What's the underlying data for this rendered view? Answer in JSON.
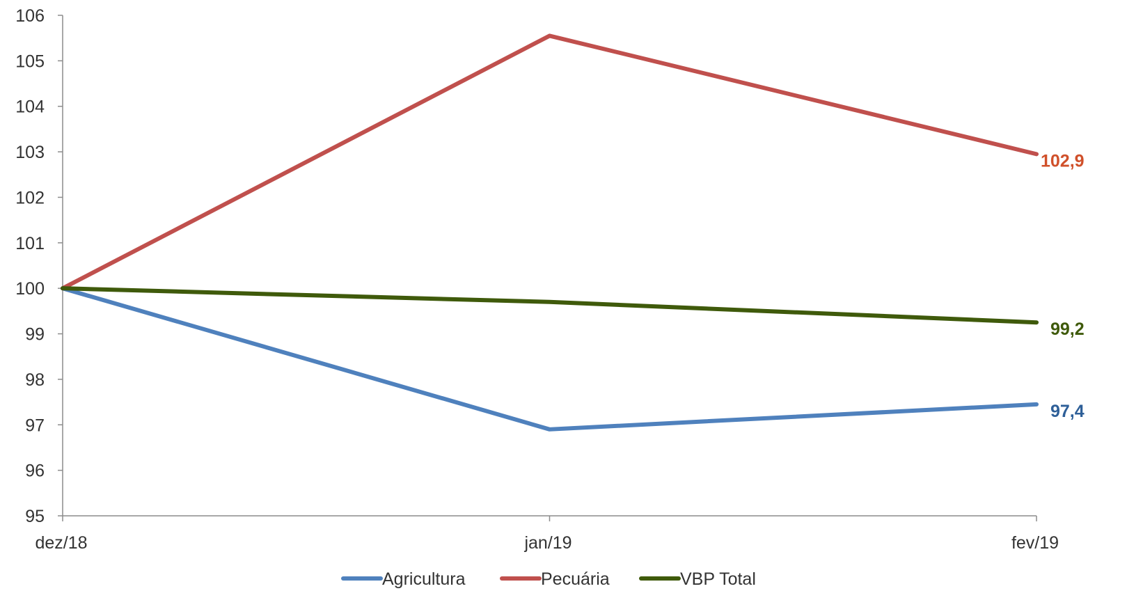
{
  "chart_data": {
    "type": "line",
    "title": "",
    "xlabel": "",
    "ylabel": "",
    "categories": [
      "dez/18",
      "jan/19",
      "fev/19"
    ],
    "ylim": [
      95,
      106
    ],
    "yticks": [
      "95",
      "96",
      "97",
      "98",
      "99",
      "100",
      "101",
      "102",
      "103",
      "104",
      "105",
      "106"
    ],
    "grid": false,
    "legend_position": "bottom",
    "series": [
      {
        "name": "Agricultura",
        "values": [
          100,
          96.9,
          97.45
        ],
        "color": "#4f81bd",
        "end_label": "97,4",
        "end_label_color": "#2e5f98"
      },
      {
        "name": "Pecuária",
        "values": [
          100,
          105.55,
          102.95
        ],
        "color": "#c0504d",
        "end_label": "102,9",
        "end_label_color": "#d0502a"
      },
      {
        "name": "VBP Total",
        "values": [
          100,
          99.7,
          99.25
        ],
        "color": "#3f5a0b",
        "end_label": "99,2",
        "end_label_color": "#3f5a0b"
      }
    ]
  }
}
